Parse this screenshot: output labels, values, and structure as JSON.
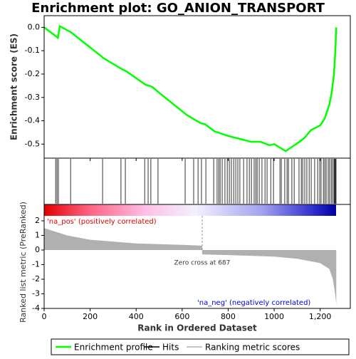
{
  "chart_data": {
    "type": "line",
    "title": "Enrichment plot: GO_ANION_TRANSPORT",
    "xlabel": "Rank in Ordered Dataset",
    "xlim": [
      0,
      1331
    ],
    "xticks": [
      0,
      200,
      400,
      600,
      800,
      1000,
      {
        "value": 1200,
        "label": "1,200"
      }
    ],
    "es": {
      "name": "Enrichment profile",
      "color": "#00ff00",
      "ylabel": "Enrichment score (ES)",
      "ylim": [
        -0.56,
        0.05
      ],
      "yticks": [
        {
          "value": 0,
          "label": "0.0"
        },
        -0.1,
        -0.2,
        -0.3,
        -0.4,
        -0.5
      ],
      "x": [
        0,
        60,
        68,
        115,
        250,
        255,
        340,
        360,
        440,
        470,
        500,
        620,
        680,
        700,
        740,
        800,
        860,
        900,
        940,
        980,
        1000,
        1050,
        1080,
        1110,
        1130,
        1160,
        1200,
        1220,
        1240,
        1250,
        1260,
        1266,
        1270
      ],
      "values": [
        0,
        -0.045,
        0.005,
        -0.02,
        -0.125,
        -0.13,
        -0.18,
        -0.19,
        -0.245,
        -0.255,
        -0.28,
        -0.375,
        -0.41,
        -0.415,
        -0.445,
        -0.465,
        -0.48,
        -0.49,
        -0.49,
        -0.505,
        -0.5,
        -0.53,
        -0.51,
        -0.49,
        -0.475,
        -0.44,
        -0.42,
        -0.39,
        -0.33,
        -0.28,
        -0.2,
        -0.1,
        0
      ]
    },
    "hits": {
      "name": "Hits",
      "color": "#000000",
      "x": [
        50,
        56,
        62,
        115,
        254,
        334,
        353,
        437,
        452,
        464,
        495,
        613,
        650,
        669,
        684,
        703,
        737,
        752,
        759,
        765,
        774,
        786,
        796,
        805,
        814,
        824,
        833,
        842,
        851,
        867,
        882,
        892,
        901,
        913,
        920,
        926,
        935,
        947,
        960,
        969,
        985,
        997,
        1025,
        1031,
        1046,
        1056,
        1062,
        1077,
        1087,
        1108,
        1118,
        1124,
        1133,
        1142,
        1152,
        1161,
        1176,
        1189,
        1198,
        1204,
        1214,
        1220,
        1226,
        1235,
        1241,
        1248,
        1254,
        1260,
        1263,
        1266,
        1269
      ]
    },
    "metric": {
      "name": "Ranking metric scores",
      "color": "#b0b0b0",
      "ylabel": "Ranked list metric (PreRanked)",
      "ylim": [
        -4,
        2.34
      ],
      "yticks": [
        2,
        1,
        0,
        -1,
        -2,
        -3,
        -4
      ],
      "x": [
        0,
        100,
        200,
        400,
        600,
        686,
        687,
        800,
        1000,
        1100,
        1200,
        1240,
        1255,
        1265,
        1270
      ],
      "values": [
        1.5,
        1.0,
        0.7,
        0.45,
        0.35,
        0.3,
        -0.3,
        -0.35,
        -0.45,
        -0.6,
        -0.9,
        -1.3,
        -2,
        -3,
        -3.7
      ]
    },
    "zero_cross": {
      "label": "Zero cross at 687",
      "value": 687
    },
    "pos_label": "'na_pos' (positively correlated)",
    "neg_label": "'na_neg' (negatively correlated)"
  }
}
